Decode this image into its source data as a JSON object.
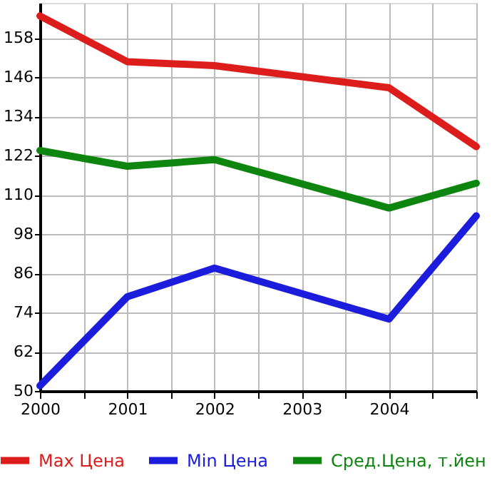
{
  "chart_data": {
    "type": "line",
    "x": [
      2000,
      2001,
      2002,
      2004,
      2005
    ],
    "series": [
      {
        "name": "Max Цена",
        "color": "#dd1c1c",
        "values": [
          164.8,
          150.8,
          149.6,
          142.8,
          124.8
        ]
      },
      {
        "name": "Min Цена",
        "color": "#1c1cdd",
        "values": [
          51.6,
          78.8,
          87.6,
          72,
          103.6
        ]
      },
      {
        "name": "Сред.Цена, т.йен",
        "color": "#0e850e",
        "values": [
          123.6,
          118.8,
          120.8,
          106,
          113.6
        ]
      }
    ],
    "xlim": [
      2000,
      2005
    ],
    "xticks": [
      2000,
      {
        "value": 2000.5,
        "label": null
      },
      2001,
      {
        "value": 2001.5,
        "label": null
      },
      2002,
      {
        "value": 2002.5,
        "label": null
      },
      2003,
      {
        "value": 2003.5,
        "label": null
      },
      2004,
      {
        "value": 2004.5,
        "label": null
      },
      {
        "value": 2005,
        "label": null
      }
    ],
    "ylim": [
      50,
      168.8
    ],
    "yticks": [
      50,
      62,
      74,
      86,
      98,
      110,
      122,
      134,
      146,
      158
    ],
    "grid": true,
    "legend": "bottom",
    "marker": "none",
    "line_style": "solid"
  }
}
